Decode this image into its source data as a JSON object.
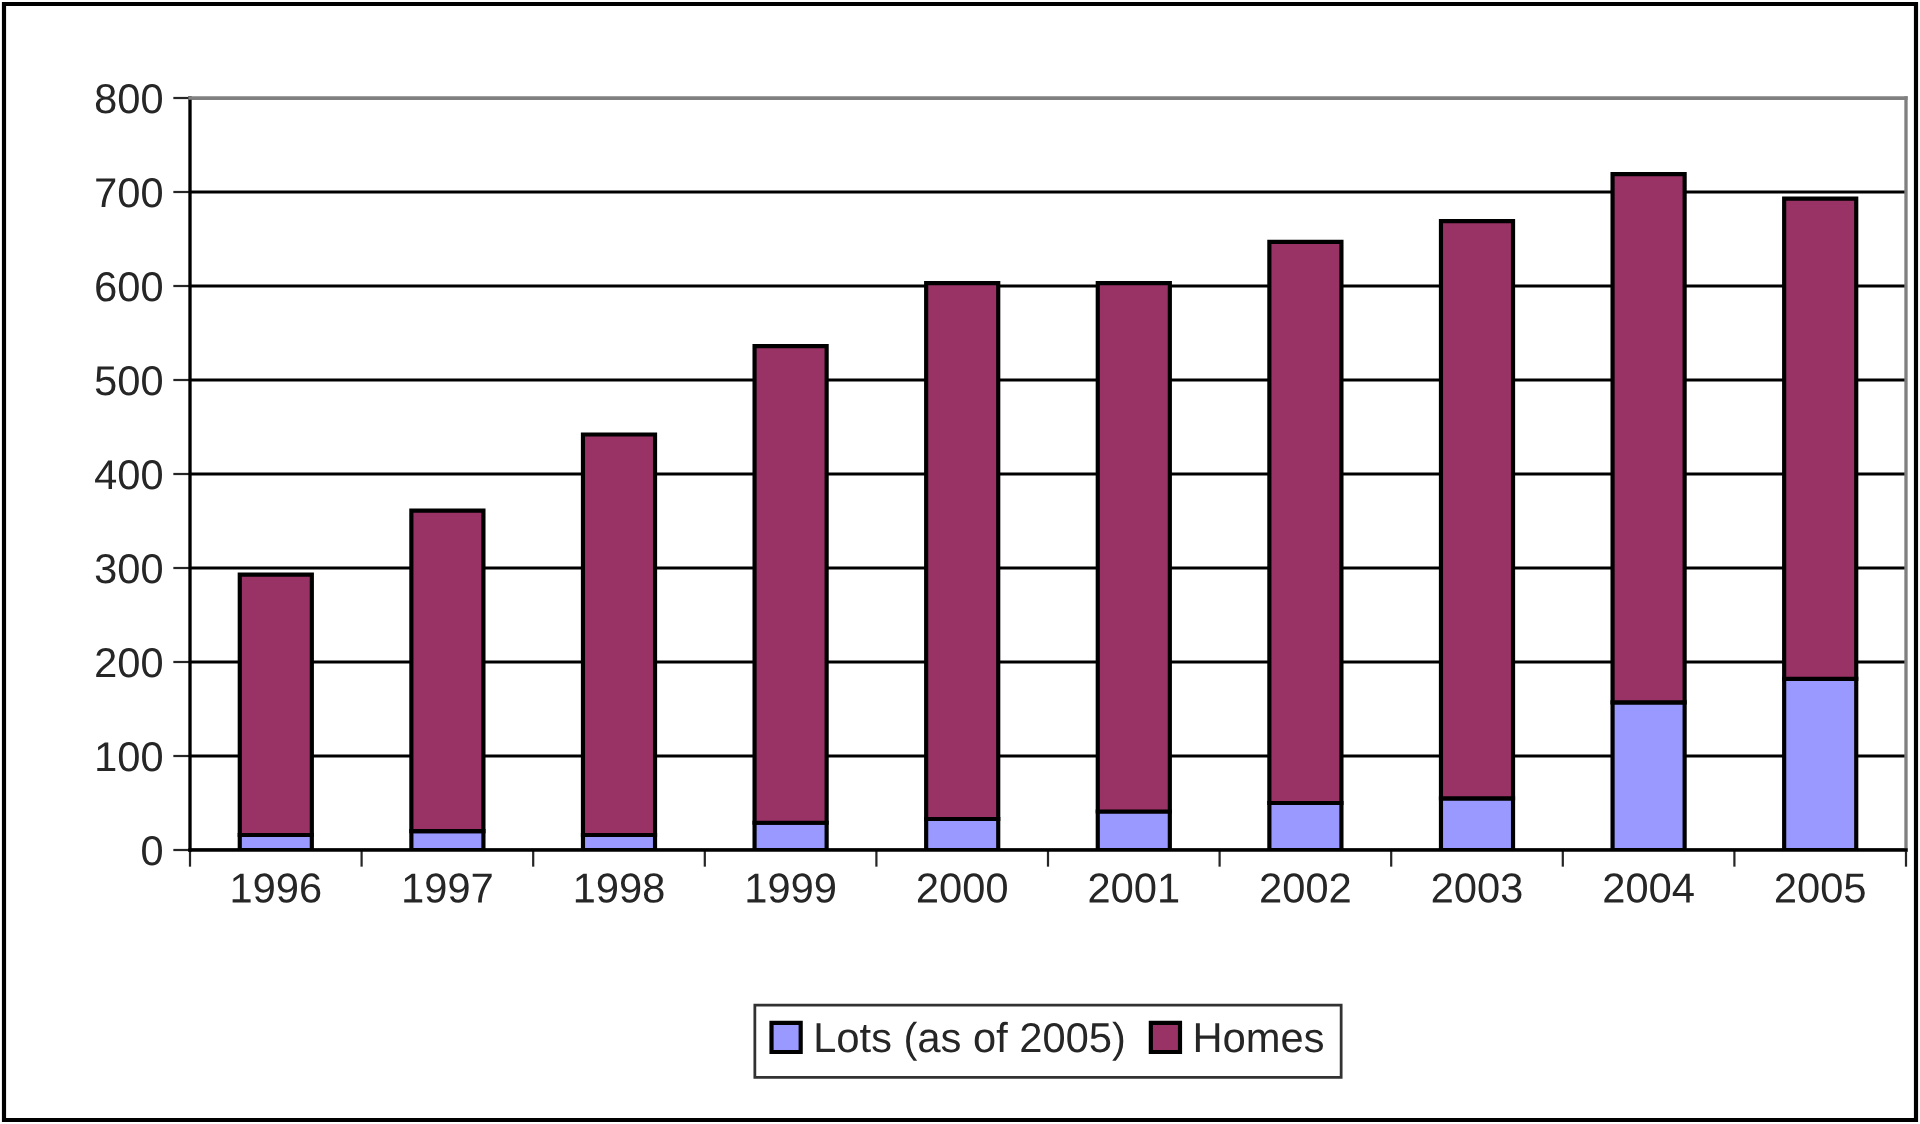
{
  "chart_data": {
    "type": "bar",
    "stacked": true,
    "categories": [
      "1996",
      "1997",
      "1998",
      "1999",
      "2000",
      "2001",
      "2002",
      "2003",
      "2004",
      "2005"
    ],
    "series": [
      {
        "name": "Lots (as of 2005)",
        "color": "#9999ff",
        "values": [
          16,
          20,
          16,
          29,
          33,
          41,
          50,
          55,
          157,
          182
        ]
      },
      {
        "name": "Homes",
        "color": "#993366",
        "values": [
          277,
          341,
          426,
          507,
          570,
          562,
          597,
          614,
          562,
          511
        ]
      }
    ],
    "ylim": [
      0,
      800
    ],
    "yticks": [
      0,
      100,
      200,
      300,
      400,
      500,
      600,
      700,
      800
    ],
    "grid": "y",
    "legend": "bottom"
  }
}
